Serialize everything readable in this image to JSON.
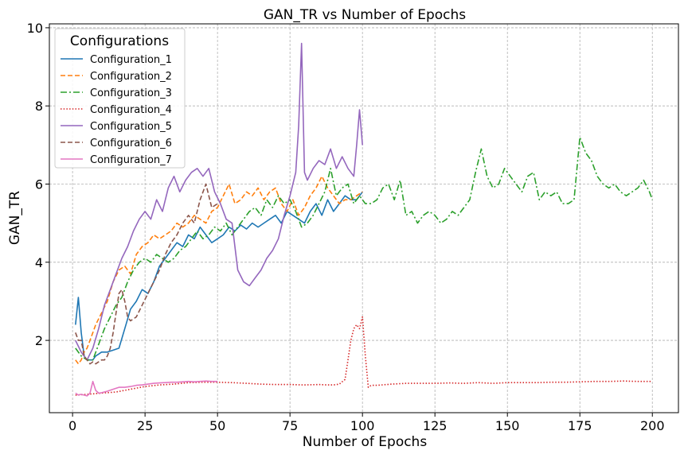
{
  "chart_data": {
    "type": "line",
    "title": "GAN_TR vs Number of Epochs",
    "xlabel": "Number of Epochs",
    "ylabel": "GAN_TR",
    "xlim": [
      -8,
      209
    ],
    "ylim": [
      0.15,
      10.1
    ],
    "xticks": [
      0,
      25,
      50,
      75,
      100,
      125,
      150,
      175,
      200
    ],
    "yticks": [
      2,
      4,
      6,
      8,
      10
    ],
    "grid": true,
    "legend": {
      "title": "Configurations",
      "placement": "top-left"
    },
    "series": [
      {
        "name": "Configuration_1",
        "color": "#1f77b4",
        "dash": "solid",
        "x": [
          1,
          2,
          3,
          4,
          5,
          6,
          7,
          8,
          9,
          10,
          12,
          14,
          16,
          18,
          20,
          22,
          24,
          26,
          28,
          30,
          32,
          34,
          36,
          38,
          40,
          42,
          44,
          46,
          48,
          50,
          52,
          54,
          56,
          58,
          60,
          62,
          64,
          66,
          68,
          70,
          72,
          74,
          76,
          78,
          80,
          82,
          84,
          86,
          88,
          90,
          92,
          94,
          96,
          98,
          100
        ],
        "values": [
          2.4,
          3.1,
          2.2,
          1.6,
          1.5,
          1.5,
          1.5,
          1.6,
          1.65,
          1.7,
          1.7,
          1.75,
          1.8,
          2.3,
          2.8,
          3.0,
          3.3,
          3.2,
          3.5,
          3.9,
          4.1,
          4.3,
          4.5,
          4.4,
          4.7,
          4.6,
          4.9,
          4.7,
          4.5,
          4.6,
          4.7,
          4.9,
          4.8,
          4.95,
          4.85,
          5.0,
          4.9,
          5.0,
          5.1,
          5.2,
          5.0,
          5.3,
          5.2,
          5.1,
          5.0,
          5.3,
          5.5,
          5.2,
          5.6,
          5.3,
          5.5,
          5.7,
          5.6,
          5.6,
          5.8
        ]
      },
      {
        "name": "Configuration_2",
        "color": "#ff7f0e",
        "dash": "dashed",
        "x": [
          1,
          2,
          3,
          4,
          5,
          6,
          7,
          8,
          10,
          12,
          14,
          16,
          18,
          20,
          22,
          24,
          26,
          28,
          30,
          32,
          34,
          36,
          38,
          40,
          42,
          44,
          46,
          48,
          50,
          52,
          54,
          56,
          58,
          60,
          62,
          64,
          66,
          68,
          70,
          72,
          74,
          76,
          78,
          80,
          82,
          84,
          86,
          88,
          90,
          92,
          94,
          96,
          98,
          100
        ],
        "values": [
          1.5,
          1.4,
          1.5,
          1.7,
          1.8,
          2.0,
          2.2,
          2.4,
          2.7,
          3.0,
          3.5,
          3.8,
          3.9,
          3.7,
          4.2,
          4.4,
          4.5,
          4.7,
          4.6,
          4.7,
          4.8,
          5.0,
          4.9,
          5.0,
          5.2,
          5.1,
          5.0,
          5.3,
          5.4,
          5.7,
          6.0,
          5.5,
          5.6,
          5.8,
          5.7,
          5.9,
          5.6,
          5.8,
          5.9,
          5.5,
          5.3,
          5.6,
          5.2,
          5.4,
          5.7,
          5.9,
          6.2,
          5.9,
          5.7,
          5.5,
          5.6,
          5.6,
          5.7,
          5.8
        ]
      },
      {
        "name": "Configuration_3",
        "color": "#2ca02c",
        "dash": "dashdot",
        "x": [
          1,
          3,
          5,
          7,
          9,
          11,
          13,
          15,
          17,
          19,
          21,
          23,
          25,
          27,
          29,
          31,
          33,
          35,
          37,
          39,
          41,
          43,
          45,
          47,
          49,
          51,
          53,
          55,
          57,
          59,
          61,
          63,
          65,
          67,
          69,
          71,
          73,
          75,
          77,
          79,
          81,
          83,
          85,
          87,
          89,
          91,
          93,
          95,
          97,
          99,
          101,
          103,
          105,
          107,
          109,
          111,
          113,
          115,
          117,
          119,
          121,
          123,
          125,
          127,
          129,
          131,
          133,
          135,
          137,
          139,
          141,
          143,
          145,
          147,
          149,
          151,
          153,
          155,
          157,
          159,
          161,
          163,
          165,
          167,
          169,
          171,
          173,
          175,
          177,
          179,
          181,
          183,
          185,
          187,
          189,
          191,
          193,
          195,
          197,
          199,
          200
        ],
        "values": [
          1.8,
          1.6,
          1.5,
          1.5,
          1.9,
          2.3,
          2.6,
          2.9,
          3.1,
          3.5,
          3.8,
          4.0,
          4.1,
          4.0,
          4.2,
          4.1,
          4.0,
          4.1,
          4.3,
          4.4,
          4.6,
          4.8,
          4.6,
          4.7,
          4.9,
          4.8,
          5.0,
          4.7,
          4.9,
          5.1,
          5.3,
          5.4,
          5.2,
          5.6,
          5.4,
          5.7,
          5.5,
          5.6,
          5.3,
          4.9,
          5.0,
          5.2,
          5.5,
          5.8,
          6.4,
          5.7,
          5.9,
          6.0,
          5.5,
          5.7,
          5.5,
          5.5,
          5.6,
          5.9,
          6.0,
          5.6,
          6.1,
          5.2,
          5.3,
          5.0,
          5.2,
          5.3,
          5.2,
          5.0,
          5.1,
          5.3,
          5.2,
          5.4,
          5.6,
          6.3,
          6.9,
          6.2,
          5.9,
          6.0,
          6.4,
          6.2,
          6.0,
          5.8,
          6.2,
          6.3,
          5.6,
          5.8,
          5.7,
          5.8,
          5.5,
          5.5,
          5.6,
          7.2,
          6.8,
          6.6,
          6.2,
          6.0,
          5.9,
          6.0,
          5.8,
          5.7,
          5.8,
          5.9,
          6.1,
          5.8,
          5.6
        ]
      },
      {
        "name": "Configuration_4",
        "color": "#d62728",
        "dash": "dotted",
        "x": [
          1,
          5,
          10,
          15,
          20,
          25,
          30,
          35,
          40,
          45,
          50,
          55,
          60,
          65,
          70,
          75,
          80,
          85,
          88,
          90,
          92,
          94,
          95,
          96,
          97,
          98,
          99,
          100,
          101,
          102,
          103,
          105,
          110,
          115,
          120,
          125,
          130,
          135,
          140,
          145,
          150,
          155,
          160,
          165,
          170,
          175,
          180,
          185,
          190,
          195,
          200
        ],
        "values": [
          0.6,
          0.62,
          0.65,
          0.68,
          0.75,
          0.82,
          0.86,
          0.88,
          0.92,
          0.93,
          0.93,
          0.92,
          0.9,
          0.88,
          0.87,
          0.87,
          0.86,
          0.87,
          0.86,
          0.86,
          0.88,
          1.0,
          1.5,
          2.0,
          2.3,
          2.4,
          2.3,
          2.6,
          1.6,
          0.8,
          0.85,
          0.85,
          0.88,
          0.9,
          0.9,
          0.9,
          0.91,
          0.9,
          0.92,
          0.9,
          0.92,
          0.92,
          0.92,
          0.93,
          0.93,
          0.94,
          0.95,
          0.95,
          0.96,
          0.95,
          0.95
        ]
      },
      {
        "name": "Configuration_5",
        "color": "#9467bd",
        "dash": "solid",
        "x": [
          1,
          3,
          5,
          7,
          9,
          11,
          13,
          15,
          17,
          19,
          21,
          23,
          25,
          27,
          29,
          31,
          33,
          35,
          37,
          39,
          41,
          43,
          45,
          47,
          49,
          51,
          53,
          55,
          57,
          59,
          61,
          63,
          65,
          67,
          69,
          71,
          73,
          75,
          77,
          78,
          79,
          80,
          81,
          83,
          85,
          87,
          89,
          91,
          93,
          95,
          97,
          98,
          99,
          100
        ],
        "values": [
          2.0,
          1.7,
          1.5,
          1.8,
          2.3,
          2.9,
          3.3,
          3.7,
          4.1,
          4.4,
          4.8,
          5.1,
          5.3,
          5.1,
          5.6,
          5.3,
          5.9,
          6.2,
          5.8,
          6.1,
          6.3,
          6.4,
          6.2,
          6.4,
          5.8,
          5.5,
          5.1,
          5.0,
          3.8,
          3.5,
          3.4,
          3.6,
          3.8,
          4.1,
          4.3,
          4.6,
          5.2,
          5.7,
          6.3,
          7.5,
          9.6,
          6.3,
          6.1,
          6.4,
          6.6,
          6.5,
          6.9,
          6.4,
          6.7,
          6.4,
          6.2,
          7.0,
          7.9,
          7.0
        ]
      },
      {
        "name": "Configuration_6",
        "color": "#8c564b",
        "dash": "dashed",
        "x": [
          1,
          2,
          3,
          4,
          5,
          6,
          7,
          8,
          9,
          10,
          11,
          12,
          13,
          14,
          15,
          16,
          17,
          18,
          19,
          20,
          22,
          24,
          26,
          28,
          30,
          32,
          34,
          36,
          38,
          40,
          42,
          44,
          46,
          48,
          50
        ],
        "values": [
          2.2,
          2.0,
          2.0,
          1.6,
          1.5,
          1.4,
          1.45,
          1.4,
          1.45,
          1.5,
          1.5,
          1.6,
          1.8,
          2.2,
          2.7,
          3.2,
          3.3,
          3.0,
          2.6,
          2.5,
          2.6,
          2.9,
          3.2,
          3.5,
          3.8,
          4.2,
          4.5,
          4.7,
          5.0,
          5.2,
          5.0,
          5.6,
          6.0,
          5.4,
          5.5
        ]
      },
      {
        "name": "Configuration_7",
        "color": "#e377c2",
        "dash": "solid",
        "x": [
          1,
          2,
          3,
          4,
          5,
          6,
          7,
          8,
          9,
          10,
          12,
          14,
          16,
          18,
          20,
          22,
          24,
          26,
          28,
          30,
          32,
          34,
          36,
          38,
          40,
          42,
          44,
          46,
          48,
          50
        ],
        "values": [
          0.65,
          0.6,
          0.62,
          0.6,
          0.58,
          0.65,
          0.95,
          0.72,
          0.65,
          0.66,
          0.7,
          0.75,
          0.8,
          0.8,
          0.82,
          0.85,
          0.86,
          0.88,
          0.9,
          0.91,
          0.92,
          0.93,
          0.93,
          0.94,
          0.95,
          0.94,
          0.95,
          0.96,
          0.95,
          0.95
        ]
      }
    ]
  }
}
